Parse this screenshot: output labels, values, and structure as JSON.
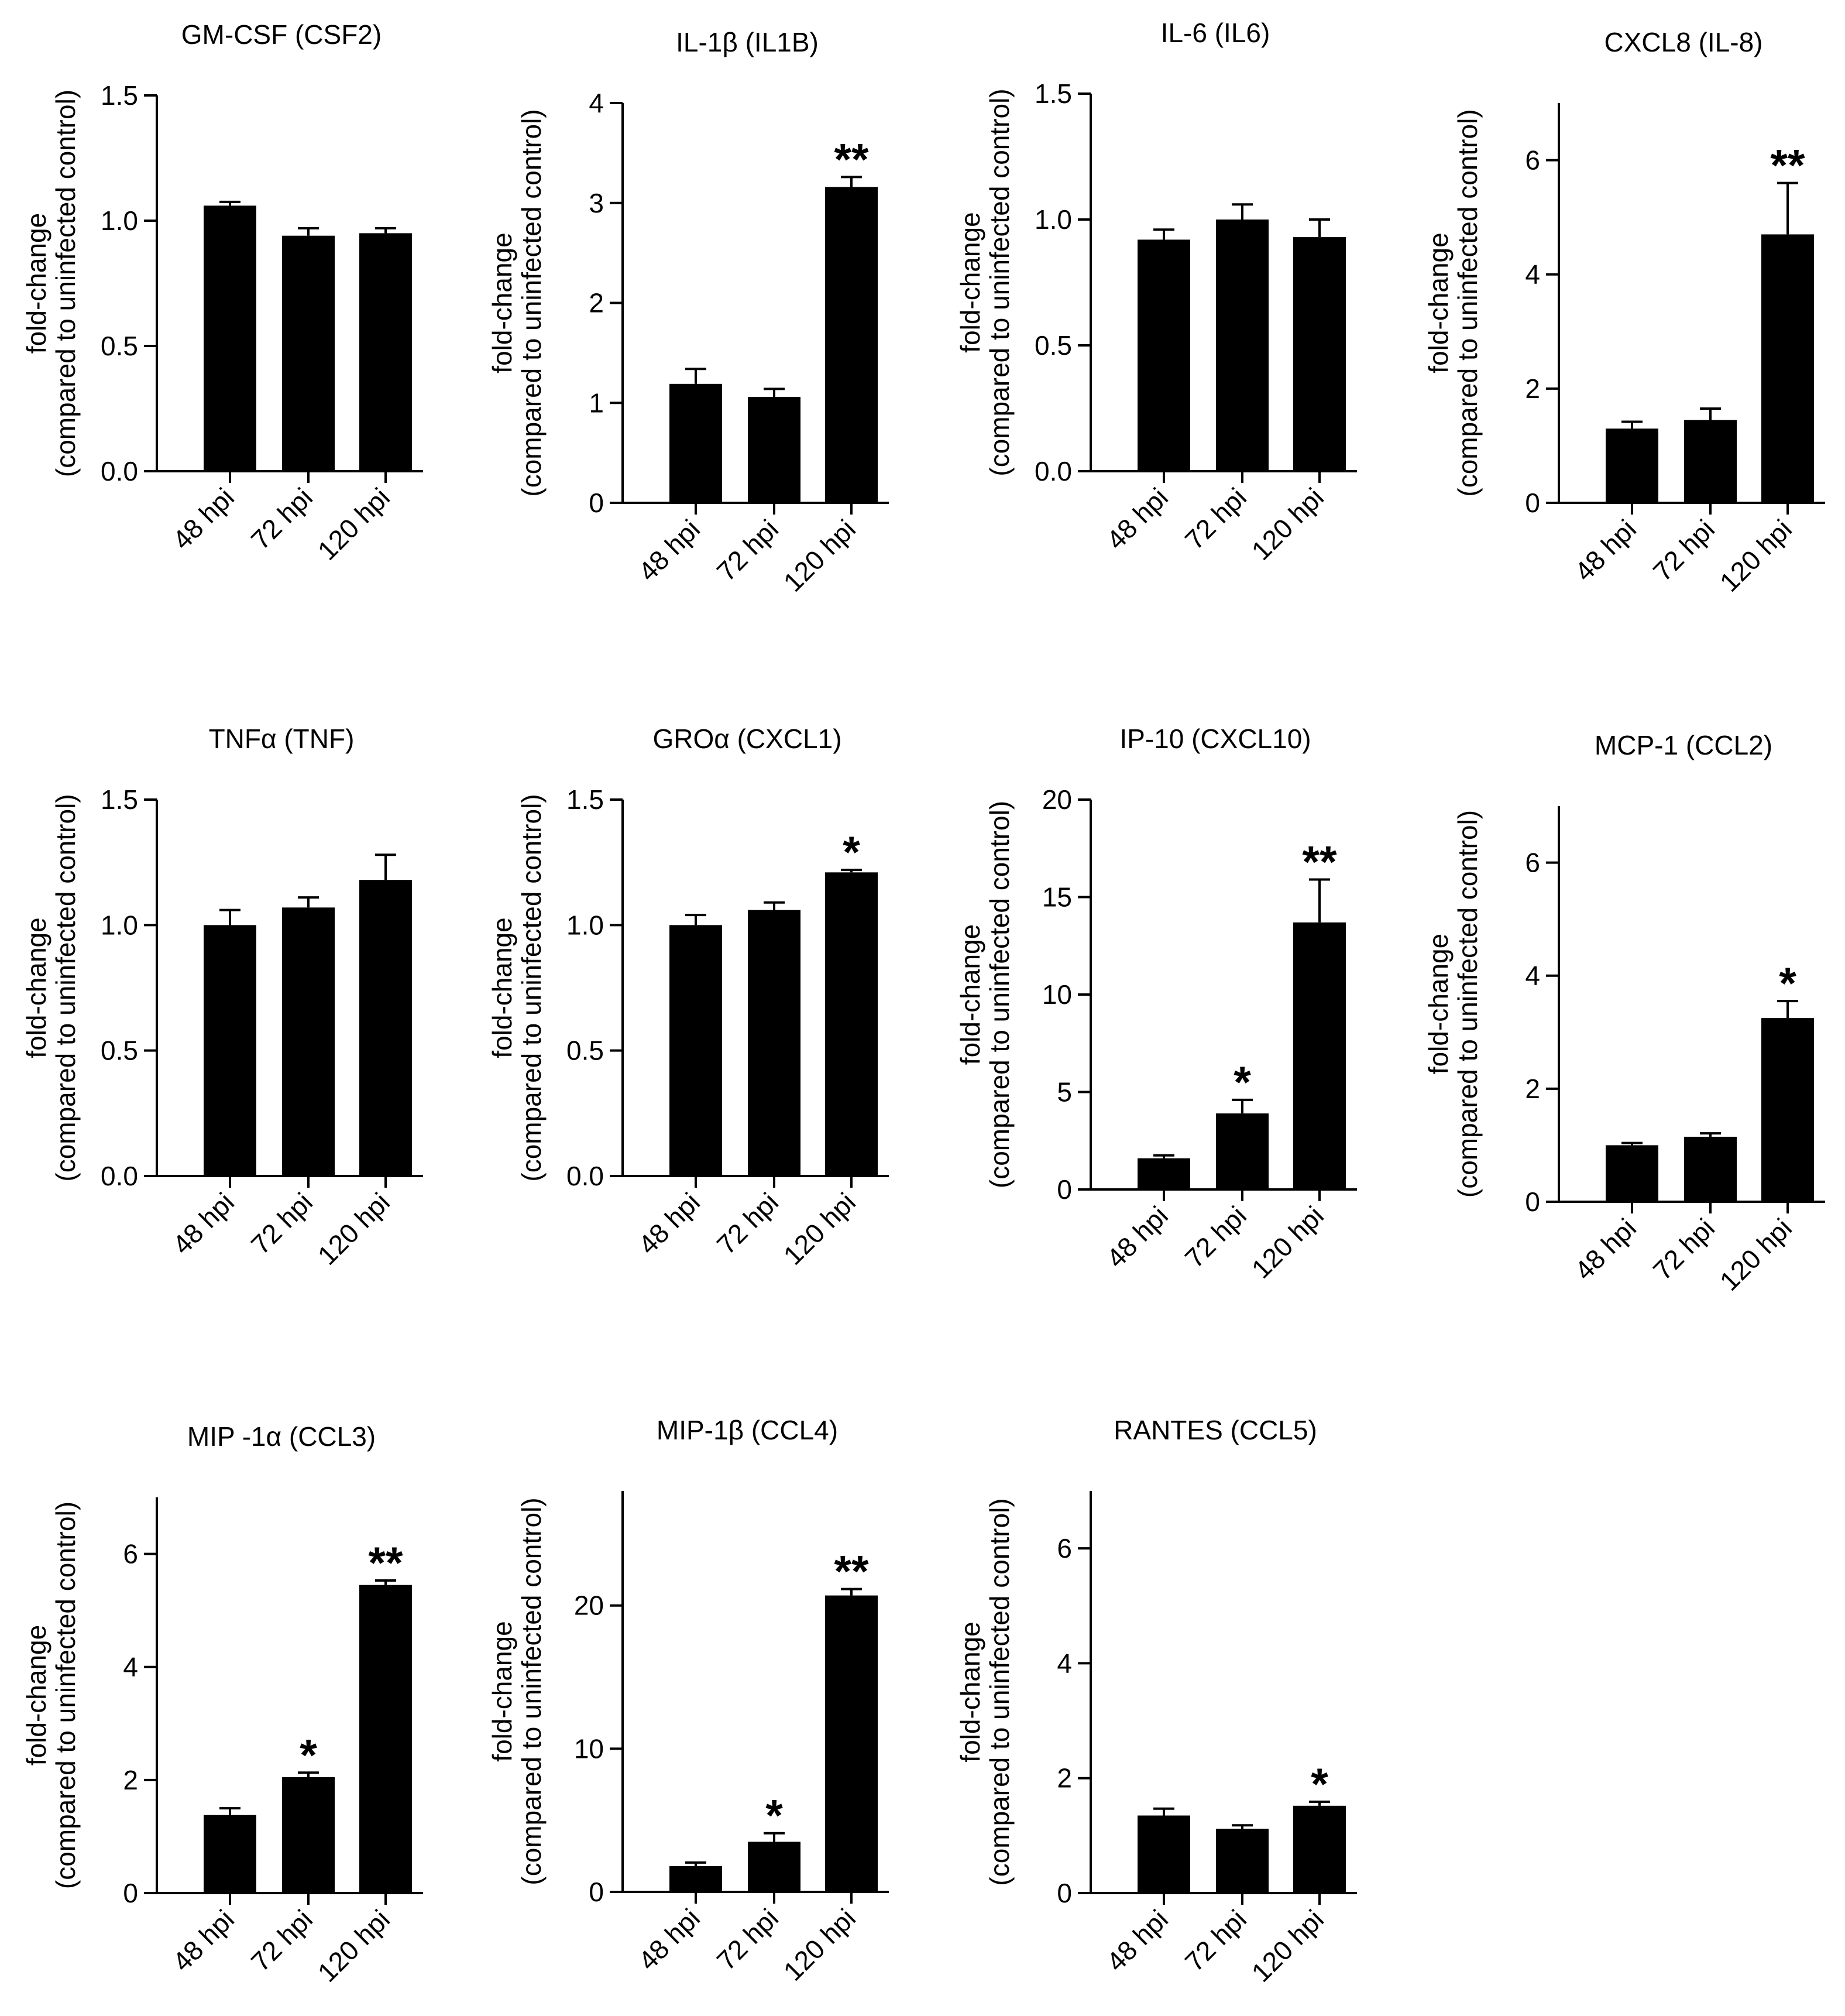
{
  "figure": {
    "ylabel_line1": "fold-change",
    "ylabel_line2": "(compared to uninfected control)",
    "bar_color": "#000000"
  },
  "chart_data": [
    {
      "type": "bar",
      "title": "GM-CSF (CSF2)",
      "categories": [
        "48 hpi",
        "72 hpi",
        "120 hpi"
      ],
      "values": [
        1.06,
        0.94,
        0.95
      ],
      "errors": [
        0.015,
        0.03,
        0.02
      ],
      "significance": [
        "",
        "",
        ""
      ],
      "ylim": [
        0,
        1.5
      ],
      "yticks": [
        0.0,
        0.5,
        1.0,
        1.5
      ],
      "ytick_labels": [
        "0.0",
        "0.5",
        "1.0",
        "1.5"
      ],
      "xlabel": "",
      "ylabel": "fold-change (compared to uninfected control)"
    },
    {
      "type": "bar",
      "title": "IL-1β (IL1B)",
      "categories": [
        "48 hpi",
        "72 hpi",
        "120 hpi"
      ],
      "values": [
        1.19,
        1.06,
        3.16
      ],
      "errors": [
        0.15,
        0.08,
        0.1
      ],
      "significance": [
        "",
        "",
        "**"
      ],
      "ylim": [
        0,
        4
      ],
      "yticks": [
        0,
        1,
        2,
        3,
        4
      ],
      "ytick_labels": [
        "0",
        "1",
        "2",
        "3",
        "4"
      ],
      "xlabel": "",
      "ylabel": "fold-change (compared to uninfected control)"
    },
    {
      "type": "bar",
      "title": "IL-6 (IL6)",
      "categories": [
        "48 hpi",
        "72 hpi",
        "120 hpi"
      ],
      "values": [
        0.92,
        1.0,
        0.93
      ],
      "errors": [
        0.04,
        0.06,
        0.07
      ],
      "significance": [
        "",
        "",
        ""
      ],
      "ylim": [
        0,
        1.5
      ],
      "yticks": [
        0.0,
        0.5,
        1.0,
        1.5
      ],
      "ytick_labels": [
        "0.0",
        "0.5",
        "1.0",
        "1.5"
      ],
      "xlabel": "",
      "ylabel": "fold-change (compared to uninfected control)"
    },
    {
      "type": "bar",
      "title": "CXCL8 (IL-8)",
      "categories": [
        "48 hpi",
        "72 hpi",
        "120 hpi"
      ],
      "values": [
        1.3,
        1.45,
        4.7
      ],
      "errors": [
        0.12,
        0.2,
        0.9
      ],
      "significance": [
        "",
        "",
        "**"
      ],
      "ylim": [
        0,
        7
      ],
      "yticks": [
        0,
        2,
        4,
        6
      ],
      "ytick_labels": [
        "0",
        "2",
        "4",
        "6"
      ],
      "xlabel": "",
      "ylabel": "fold-change (compared to uninfected control)"
    },
    {
      "type": "bar",
      "title": "TNFα (TNF)",
      "categories": [
        "48 hpi",
        "72 hpi",
        "120 hpi"
      ],
      "values": [
        1.0,
        1.07,
        1.18
      ],
      "errors": [
        0.06,
        0.04,
        0.1
      ],
      "significance": [
        "",
        "",
        ""
      ],
      "ylim": [
        0,
        1.5
      ],
      "yticks": [
        0.0,
        0.5,
        1.0,
        1.5
      ],
      "ytick_labels": [
        "0.0",
        "0.5",
        "1.0",
        "1.5"
      ],
      "xlabel": "",
      "ylabel": "fold-change (compared to uninfected control)"
    },
    {
      "type": "bar",
      "title": "GROα (CXCL1)",
      "categories": [
        "48 hpi",
        "72 hpi",
        "120 hpi"
      ],
      "values": [
        1.0,
        1.06,
        1.21
      ],
      "errors": [
        0.04,
        0.03,
        0.01
      ],
      "significance": [
        "",
        "",
        "*"
      ],
      "ylim": [
        0,
        1.5
      ],
      "yticks": [
        0.0,
        0.5,
        1.0,
        1.5
      ],
      "ytick_labels": [
        "0.0",
        "0.5",
        "1.0",
        "1.5"
      ],
      "xlabel": "",
      "ylabel": "fold-change (compared to uninfected control)"
    },
    {
      "type": "bar",
      "title": "IP-10 (CXCL10)",
      "categories": [
        "48 hpi",
        "72 hpi",
        "120 hpi"
      ],
      "values": [
        1.6,
        3.9,
        13.7
      ],
      "errors": [
        0.15,
        0.7,
        2.2
      ],
      "significance": [
        "",
        "*",
        "**"
      ],
      "ylim": [
        0,
        20
      ],
      "yticks": [
        0,
        5,
        10,
        15,
        20
      ],
      "ytick_labels": [
        "0",
        "5",
        "10",
        "15",
        "20"
      ],
      "xlabel": "",
      "ylabel": "fold-change (compared to uninfected control)"
    },
    {
      "type": "bar",
      "title": "MCP-1 (CCL2)",
      "categories": [
        "48 hpi",
        "72 hpi",
        "120 hpi"
      ],
      "values": [
        1.0,
        1.15,
        3.25
      ],
      "errors": [
        0.04,
        0.06,
        0.3
      ],
      "significance": [
        "",
        "",
        "*"
      ],
      "ylim": [
        0,
        7
      ],
      "yticks": [
        0,
        2,
        4,
        6
      ],
      "ytick_labels": [
        "0",
        "2",
        "4",
        "6"
      ],
      "xlabel": "",
      "ylabel": "fold-change (compared to uninfected control)"
    },
    {
      "type": "bar",
      "title": "MIP -1α (CCL3)",
      "categories": [
        "48 hpi",
        "72 hpi",
        "120 hpi"
      ],
      "values": [
        1.38,
        2.05,
        5.45
      ],
      "errors": [
        0.12,
        0.08,
        0.08
      ],
      "significance": [
        "",
        "*",
        "**"
      ],
      "ylim": [
        0,
        7
      ],
      "yticks": [
        0,
        2,
        4,
        6
      ],
      "ytick_labels": [
        "0",
        "2",
        "4",
        "6"
      ],
      "xlabel": "",
      "ylabel": "fold-change (compared to uninfected control)"
    },
    {
      "type": "bar",
      "title": "MIP-1β (CCL4)",
      "categories": [
        "48 hpi",
        "72 hpi",
        "120 hpi"
      ],
      "values": [
        1.8,
        3.5,
        20.7
      ],
      "errors": [
        0.25,
        0.6,
        0.45
      ],
      "significance": [
        "",
        "*",
        "**"
      ],
      "ylim": [
        0,
        28
      ],
      "yticks": [
        0,
        10,
        20
      ],
      "ytick_labels": [
        "0",
        "10",
        "20"
      ],
      "xlabel": "",
      "ylabel": "fold-change (compared to uninfected control)"
    },
    {
      "type": "bar",
      "title": "RANTES (CCL5)",
      "categories": [
        "48 hpi",
        "72 hpi",
        "120 hpi"
      ],
      "values": [
        1.35,
        1.12,
        1.52
      ],
      "errors": [
        0.12,
        0.06,
        0.07
      ],
      "significance": [
        "",
        "",
        "*"
      ],
      "ylim": [
        0,
        7
      ],
      "yticks": [
        0,
        2,
        4,
        6
      ],
      "ytick_labels": [
        "0",
        "2",
        "4",
        "6"
      ],
      "xlabel": "",
      "ylabel": "fold-change (compared to uninfected control)"
    }
  ]
}
